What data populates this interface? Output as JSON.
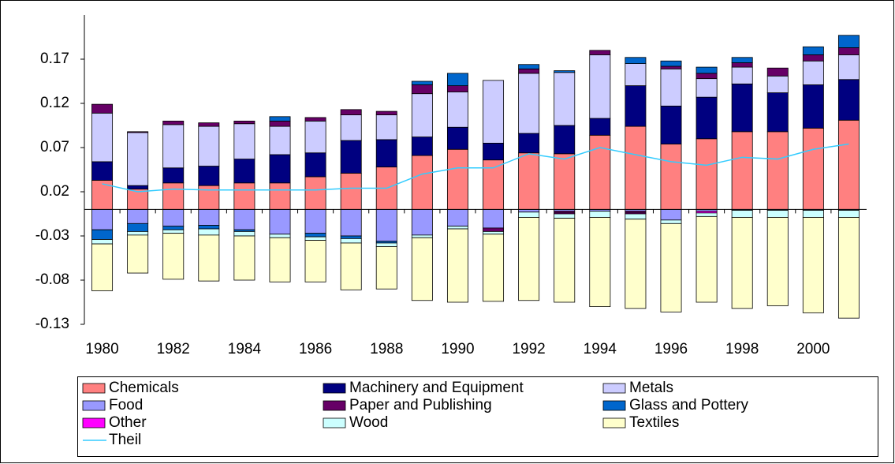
{
  "chart_data": {
    "type": "bar",
    "stacked": true,
    "categories": [
      "1980",
      null,
      "1982",
      null,
      "1984",
      null,
      "1986",
      null,
      "1988",
      null,
      "1990",
      null,
      "1992",
      null,
      "1994",
      null,
      "1996",
      null,
      "1998",
      null,
      "2000",
      null
    ],
    "ylim": [
      -0.13,
      0.22
    ],
    "yticks": [
      0.17,
      0.12,
      0.07,
      0.02,
      -0.03,
      -0.08,
      -0.13
    ],
    "grid": false,
    "legend": "bottom",
    "series": [
      {
        "name": "Chemicals",
        "color": "#ff8080",
        "values": [
          0.033,
          0.023,
          0.03,
          0.027,
          0.03,
          0.03,
          0.037,
          0.041,
          0.048,
          0.061,
          0.068,
          0.056,
          0.064,
          0.063,
          0.084,
          0.094,
          0.074,
          0.08,
          0.088,
          0.088,
          0.092,
          0.101
        ]
      },
      {
        "name": "Machinery and Equipment",
        "color": "#000080",
        "values": [
          0.021,
          0.004,
          0.017,
          0.022,
          0.027,
          0.032,
          0.027,
          0.037,
          0.031,
          0.021,
          0.025,
          0.019,
          0.022,
          0.032,
          0.019,
          0.046,
          0.043,
          0.047,
          0.054,
          0.044,
          0.049,
          0.046
        ]
      },
      {
        "name": "Metals",
        "color": "#ccccff",
        "values": [
          0.055,
          0.06,
          0.049,
          0.045,
          0.04,
          0.032,
          0.036,
          0.029,
          0.028,
          0.049,
          0.04,
          0.071,
          0.068,
          0.06,
          0.072,
          0.025,
          0.042,
          0.021,
          0.019,
          0.019,
          0.027,
          0.028
        ]
      },
      {
        "name": "Food",
        "color": "#9999ff",
        "values": [
          -0.023,
          -0.016,
          -0.019,
          -0.018,
          -0.023,
          -0.028,
          -0.027,
          -0.03,
          -0.036,
          -0.029,
          -0.019,
          -0.021,
          -0.003,
          -0.002,
          -0.002,
          -0.002,
          -0.012,
          -0.002,
          -0.001,
          -0.001,
          -0.001,
          -0.001
        ]
      },
      {
        "name": "Paper and Publishing",
        "color": "#660066",
        "values": [
          0.01,
          0.001,
          0.004,
          0.004,
          0.003,
          0.006,
          0.004,
          0.006,
          0.004,
          0.01,
          0.007,
          -0.004,
          0.005,
          -0.002,
          0.005,
          -0.002,
          0.003,
          0.006,
          0.005,
          0.009,
          0.007,
          0.008
        ]
      },
      {
        "name": "Glass and Pottery",
        "color": "#0066cc",
        "values": [
          -0.011,
          -0.009,
          -0.004,
          -0.004,
          -0.002,
          0.005,
          -0.004,
          -0.003,
          -0.002,
          0.004,
          0.014,
          0,
          0.005,
          0.002,
          0,
          0.007,
          0.006,
          0.007,
          0.006,
          0,
          0.009,
          0.014
        ]
      },
      {
        "name": "Other",
        "color": "#ff00ff",
        "values": [
          0,
          0,
          0,
          0,
          0,
          0,
          0,
          0,
          0,
          0,
          0,
          0,
          0,
          -0.001,
          0,
          -0.001,
          0,
          -0.002,
          0,
          0,
          0,
          0
        ]
      },
      {
        "name": "Wood",
        "color": "#ccffff",
        "values": [
          -0.005,
          -0.004,
          -0.004,
          -0.007,
          -0.005,
          -0.004,
          -0.004,
          -0.005,
          -0.004,
          -0.003,
          -0.003,
          -0.003,
          -0.006,
          -0.005,
          -0.007,
          -0.006,
          -0.004,
          -0.004,
          -0.008,
          -0.008,
          -0.008,
          -0.008
        ]
      },
      {
        "name": "Textiles",
        "color": "#ffffcc",
        "values": [
          -0.053,
          -0.043,
          -0.052,
          -0.052,
          -0.05,
          -0.05,
          -0.047,
          -0.053,
          -0.048,
          -0.071,
          -0.083,
          -0.076,
          -0.094,
          -0.095,
          -0.101,
          -0.101,
          -0.1,
          -0.097,
          -0.103,
          -0.1,
          -0.108,
          -0.114
        ]
      },
      {
        "name": "Theil",
        "color": "#33ccff",
        "type": "line",
        "values": [
          0.029,
          0.02,
          0.023,
          0.022,
          0.022,
          0.022,
          0.022,
          0.024,
          0.024,
          0.04,
          0.047,
          0.047,
          0.063,
          0.057,
          0.07,
          0.062,
          0.054,
          0.05,
          0.059,
          0.057,
          0.068,
          0.074
        ]
      }
    ]
  }
}
